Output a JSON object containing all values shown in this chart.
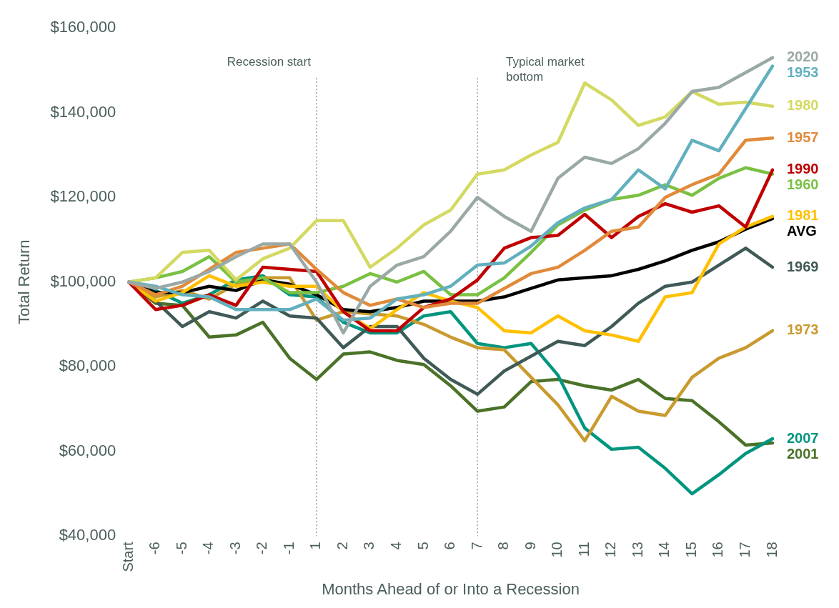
{
  "chart_data": {
    "type": "line",
    "xlabel": "Months Ahead of or Into a Recession",
    "ylabel": "Total Return",
    "categories": [
      "Start",
      "-6",
      "-5",
      "-4",
      "-3",
      "-2",
      "-1",
      "1",
      "2",
      "3",
      "4",
      "5",
      "6",
      "7",
      "8",
      "9",
      "10",
      "11",
      "12",
      "13",
      "14",
      "15",
      "16",
      "17",
      "18"
    ],
    "ylim": [
      40000,
      160000
    ],
    "yticks": [
      {
        "value": 40000,
        "label": "$40,000"
      },
      {
        "value": 60000,
        "label": "$60,000"
      },
      {
        "value": 80000,
        "label": "$80,000"
      },
      {
        "value": 100000,
        "label": "$100,000"
      },
      {
        "value": 120000,
        "label": "$120,000"
      },
      {
        "value": 140000,
        "label": "$140,000"
      },
      {
        "value": 160000,
        "label": "$160,000"
      }
    ],
    "grid": false,
    "legend": false,
    "marker": "none",
    "line_style": "solid",
    "ref_lines": [
      {
        "axis": "x",
        "value": "1",
        "label": "Recession start",
        "color": "#7f7f7f",
        "line_style": "dotted"
      },
      {
        "axis": "x",
        "value": "7",
        "label": "Typical market bottom",
        "color": "#7f7f7f",
        "line_style": "dotted"
      }
    ],
    "series": [
      {
        "name": "2020",
        "color": "#9aa9a6",
        "values": [
          100000,
          98500,
          100000,
          102500,
          106000,
          109000,
          109000,
          100000,
          88000,
          99000,
          104000,
          106000,
          112000,
          120000,
          115500,
          112000,
          124500,
          129500,
          128000,
          131500,
          137500,
          145000,
          146000,
          149500,
          153000
        ]
      },
      {
        "name": "1953",
        "color": "#62b0be",
        "values": [
          100000,
          99000,
          97000,
          96500,
          93500,
          93500,
          93500,
          96000,
          91000,
          91500,
          96000,
          97000,
          99000,
          104000,
          104500,
          108500,
          114000,
          117500,
          119500,
          126500,
          122000,
          133500,
          131000,
          141000,
          151000
        ]
      },
      {
        "name": "1980",
        "color": "#d4d962",
        "values": [
          100000,
          101000,
          107000,
          107500,
          100500,
          105500,
          108000,
          114500,
          114500,
          103500,
          108000,
          113500,
          117000,
          125500,
          126500,
          130000,
          133000,
          147000,
          143000,
          137000,
          139000,
          145000,
          142000,
          142500,
          141500
        ]
      },
      {
        "name": "1957",
        "color": "#e08a3a",
        "values": [
          100000,
          97000,
          99000,
          103000,
          107000,
          108000,
          109000,
          103000,
          97500,
          94500,
          96000,
          94000,
          95000,
          95000,
          98500,
          102000,
          103500,
          107500,
          112000,
          113000,
          120000,
          123000,
          125500,
          133500,
          134000
        ]
      },
      {
        "name": "1990",
        "color": "#c00000",
        "values": [
          100000,
          93500,
          94500,
          97000,
          94500,
          103500,
          103000,
          102500,
          93000,
          88500,
          88500,
          94000,
          96000,
          100500,
          108000,
          110500,
          111000,
          116000,
          110500,
          115500,
          118500,
          116500,
          118000,
          113000,
          126500
        ]
      },
      {
        "name": "1960",
        "color": "#7ac143",
        "values": [
          100000,
          101000,
          102500,
          106000,
          100000,
          101000,
          97500,
          97500,
          99000,
          102000,
          100000,
          102500,
          97000,
          97000,
          101000,
          107000,
          113500,
          117000,
          119500,
          120500,
          123000,
          120500,
          124500,
          127000,
          125500
        ]
      },
      {
        "name": "1981",
        "color": "#ffc000",
        "values": [
          100000,
          95500,
          97500,
          101500,
          99000,
          100000,
          99000,
          99000,
          93000,
          89000,
          93500,
          97500,
          95500,
          94000,
          88500,
          88000,
          92000,
          88500,
          87500,
          86000,
          96500,
          97500,
          109000,
          113000,
          115500
        ]
      },
      {
        "name": "AVG",
        "color": "#000000",
        "values": [
          100000,
          97500,
          97500,
          99000,
          98000,
          100500,
          99500,
          97000,
          93500,
          93000,
          94000,
          95500,
          95500,
          95500,
          96500,
          98500,
          100500,
          101000,
          101500,
          103000,
          105000,
          107500,
          109500,
          112500,
          115000
        ]
      },
      {
        "name": "1969",
        "color": "#3f5a57",
        "values": [
          100000,
          95500,
          89500,
          93000,
          91500,
          95500,
          92000,
          91500,
          84500,
          89500,
          89500,
          82000,
          77000,
          73500,
          79000,
          82500,
          86000,
          85000,
          89500,
          95000,
          99000,
          100000,
          104000,
          108000,
          103500
        ]
      },
      {
        "name": "1973",
        "color": "#c99a2e",
        "values": [
          100000,
          96500,
          98000,
          96000,
          99500,
          101000,
          101000,
          91000,
          93000,
          92500,
          92000,
          90000,
          87000,
          84500,
          84000,
          77500,
          71000,
          62500,
          73000,
          69500,
          68500,
          77500,
          82000,
          84500,
          88500
        ]
      },
      {
        "name": "2007",
        "color": "#00957f",
        "values": [
          100000,
          98000,
          95000,
          97000,
          100500,
          101500,
          97000,
          96500,
          90500,
          88000,
          88000,
          92000,
          93000,
          85500,
          84500,
          85500,
          78000,
          65500,
          60500,
          61000,
          56000,
          50000,
          54500,
          59500,
          63000
        ]
      },
      {
        "name": "2001",
        "color": "#4a7228",
        "values": [
          100000,
          95000,
          94500,
          87000,
          87500,
          90500,
          82000,
          77000,
          83000,
          83500,
          81500,
          80500,
          75500,
          69500,
          70500,
          76500,
          77000,
          75500,
          74500,
          77000,
          72500,
          72000,
          67000,
          61500,
          62000
        ]
      }
    ]
  }
}
